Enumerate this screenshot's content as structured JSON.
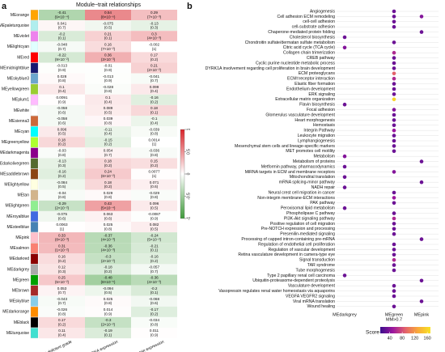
{
  "chart_data": [
    {
      "type": "heatmap",
      "panel": "a",
      "title": "Module−trait relationships",
      "rows": [
        "MEorange",
        "MEpaleturquoise",
        "MEviolet",
        "MElightcyan",
        "MEred",
        "MEmidnightblue",
        "MEskyblue3",
        "MEyellowgreen",
        "MEplum1",
        "MEwhite",
        "MEsienna3",
        "MEcyan",
        "MEgreenyellow",
        "MEdarkmagenta",
        "MEdarkolivegreen",
        "MEsaddlebrown",
        "MElightyellow",
        "MEtan",
        "MElightgreen",
        "MEroyalblue",
        "MEsteelblue",
        "MEpink",
        "MEsalmon",
        "MEdarkred",
        "MEdarkgrey",
        "MEgreen",
        "MEbrown",
        "MEskyblue",
        "MEdarkorange",
        "MEblack",
        "MEturquoise"
      ],
      "row_colors": [
        "#ffa500",
        "#afeeee",
        "#ee82ee",
        "#e0ffff",
        "#ff0000",
        "#191970",
        "#6ca6cd",
        "#9acd32",
        "#ffbbff",
        "#ffffff",
        "#cd6839",
        "#00ffff",
        "#adff2f",
        "#8b008b",
        "#556b2f",
        "#8b4513",
        "#ffffe0",
        "#d2b48c",
        "#90ee90",
        "#4169e1",
        "#4682b4",
        "#ffc0cb",
        "#fa8072",
        "#8b0000",
        "#a9a9a9",
        "#00a000",
        "#a52a2a",
        "#87ceeb",
        "#ff8c00",
        "#000000",
        "#40e0d0"
      ],
      "columns": [
        "FH-deficient grade",
        "FH mRNA expression",
        "FH protein expression"
      ],
      "values": [
        [
          -0.41,
          0.54,
          0.29
        ],
        [
          0.041,
          -0.075,
          -0.13
        ],
        [
          -0.2,
          0.21,
          0.3
        ],
        [
          -0.048,
          0.16,
          -0.002
        ],
        [
          -0.22,
          0.36,
          0.17
        ],
        [
          -0.013,
          -0.01,
          0.21
        ],
        [
          0.028,
          -0.013,
          -0.041
        ],
        [
          0.1,
          -0.028,
          0.099
        ],
        [
          0.0091,
          0.1,
          -0.16
        ],
        [
          -0.058,
          0.089,
          0.18
        ],
        [
          -0.058,
          0.039,
          -0.1
        ],
        [
          0.096,
          -0.11,
          -0.039
        ],
        [
          0.18,
          -0.15,
          0.0014
        ],
        [
          -0.03,
          0.054,
          -0.036
        ],
        [
          -0.13,
          0.18,
          0.15
        ],
        [
          -0.16,
          0.24,
          0.0077
        ],
        [
          -0.084,
          0.18,
          0.071
        ],
        [
          -0.04,
          0.029,
          -0.029
        ],
        [
          -0.29,
          0.43,
          0.096
        ],
        [
          -0.075,
          0.063,
          -0.0087
        ],
        [
          0.0063,
          0.025,
          0.082
        ],
        [
          0.33,
          -0.37,
          -0.24
        ],
        [
          0.31,
          -0.36,
          -0.21
        ],
        [
          0.16,
          -0.3,
          -0.16
        ],
        [
          0.12,
          -0.18,
          -0.057
        ],
        [
          0.25,
          -0.48,
          -0.36
        ],
        [
          0.053,
          -0.094,
          -0.2
        ],
        [
          -0.043,
          0.025,
          -0.068
        ],
        [
          -0.026,
          0.014,
          -0.17
        ],
        [
          0.17,
          -0.3,
          -0.034
        ],
        [
          0.11,
          -0.19,
          0.011
        ]
      ],
      "p_labels": [
        [
          "(9×10⁻⁴)",
          "(8×10⁻⁶)",
          "(7×10⁻³)"
        ],
        [
          "(0.7)",
          "(0.5)",
          "(0.3)"
        ],
        [
          "(0.1)",
          "(0.1)",
          "(4×10⁻³)"
        ],
        [
          "(0.7)",
          "(7×10⁻²)",
          "(1)"
        ],
        [
          "(9×10⁻²)",
          "(3×10⁻³)",
          "(0.2)"
        ],
        [
          "(0.9)",
          "(0.9)",
          "(2×10⁻²)"
        ],
        [
          "(0.8)",
          "(0.9)",
          "(0.7)"
        ],
        [
          "(0.4)",
          "(0.8)",
          "(0.4)"
        ],
        [
          "(0.9)",
          "(0.4)",
          "(0.2)"
        ],
        [
          "(0.6)",
          "(0.5)",
          "(0.1)"
        ],
        [
          "(0.6)",
          "(0.8)",
          "(0.4)"
        ],
        [
          "(0.5)",
          "(0.4)",
          "(0.8)"
        ],
        [
          "(0.2)",
          "(0.2)",
          "(1)"
        ],
        [
          "(0.8)",
          "(0.7)",
          "(0.8)"
        ],
        [
          "(0.3)",
          "(0.2)",
          "(0.2)"
        ],
        [
          "(0.2)",
          "(6×10⁻²)",
          "(1)"
        ],
        [
          "(0.5)",
          "(0.2)",
          "(0.6)"
        ],
        [
          "(0.8)",
          "(0.8)",
          "(0.8)"
        ],
        [
          "(2×10⁻²)",
          "(5×10⁻⁴)",
          "(0.5)"
        ],
        [
          "(0.6)",
          "(0.6)",
          "(0.9)"
        ],
        [
          "(1)",
          "(0.8)",
          "(0.5)"
        ],
        [
          "(8×10⁻³)",
          "(4×10⁻³)",
          "(5×10⁻²)"
        ],
        [
          "(1×10⁻²)",
          "(4×10⁻³)",
          "(0.1)"
        ],
        [
          "(0.2)",
          "(2×10⁻²)",
          "(0.2)"
        ],
        [
          "(0.3)",
          "(0.2)",
          "(0.7)"
        ],
        [
          "(5×10⁻²)",
          "(8×10⁻⁵)",
          "(4×10⁻³)"
        ],
        [
          "(0.7)",
          "(0.5)",
          "(0.1)"
        ],
        [
          "(0.7)",
          "(0.8)",
          "(0.6)"
        ],
        [
          "(0.8)",
          "(0.9)",
          "(0.2)"
        ],
        [
          "(0.2)",
          "(2×10⁻²)",
          "(0.8)"
        ],
        [
          "(0.4)",
          "(0.1)",
          "(0.9)"
        ]
      ],
      "zlim": [
        -1,
        1
      ],
      "colors": [
        "#3f9a3a",
        "#ffffff",
        "#d9242a"
      ],
      "colorbar_ticks": [
        -1,
        -0.5,
        0,
        0.5,
        1
      ]
    },
    {
      "type": "dot",
      "panel": "b",
      "y_categories": [
        "Angiogenesis",
        "Cell adhesion ECM remodeling",
        "cell-cell adhesion",
        "cell-substrate adhesion",
        "Chaperone-mediated protein folding",
        "Cholesterol biosynthesis",
        "Chondroitin sulfate/dermatan sulfate metabolism",
        "Citric acid cycle (TCA cycle)",
        "Collagen chain trimerization",
        "CREB pathway",
        "Cyclic purine nucleotide metabolic process",
        "DYRK1A involvement regarding cell proliferation in brain development",
        "ECM proteoglycans",
        "ECM=receptor interaction",
        "Elastic fiber formation",
        "Endothelium development",
        "ERK signaling",
        "Extracellular matrix organization",
        "Flavin biosynthesis",
        "Focal adhesion",
        "Glomerulus vasculature development",
        "Heart morphogenesis",
        "Hemostasis",
        "Integrin Pathway",
        "Leukocyte migration",
        "Lymphangiogenesis",
        "Mesenchymal stem cells and lineage-specific markers",
        "MET promotes cell motility",
        "Metabolism",
        "Metabolism of proteins",
        "Metformin pathway, pharmacodynamics",
        "MiRNA targets in ECM and membrane receptors",
        "Mitochondrial translation",
        "mRNA splicing-minor pathway",
        "NADH repair",
        "Neural crest cell migration in cancer",
        "Non-integrin membrane-ECM interactions",
        "PAK pathway",
        "Peroxisomal lipid metabolism",
        "Phospholipase C pathway",
        "PI3K-Akt signaling pathway",
        "Positive regulation of cell migration",
        "Pre-NOTCH expression and processing",
        "Presenilin-mediated signaling",
        "Processing of capped intron-containing pre-mRNA",
        "Regulation of endothelial cell proliferation",
        "Regulation of vascular development",
        "Retina vasculature development in camera-type eye",
        "Signal transduction",
        "TAR syndrome",
        "Tube morphogenesis",
        "Type 2 papillary renal cell carcinoma",
        "Ubiquitin-proteasome-dependent proteolysis",
        "Vasculature development",
        "Vasopressin regulates renal water homeostasis via aquaporins",
        "VEGFA VEGFR2 signaling",
        "Viral mRNA translation",
        "Wound healing"
      ],
      "series": [
        {
          "name": [
            "MEdarkgrey"
          ],
          "values": [
            null,
            null,
            null,
            null,
            null,
            30,
            null,
            40,
            null,
            null,
            null,
            null,
            null,
            null,
            null,
            null,
            null,
            null,
            30,
            null,
            null,
            null,
            null,
            null,
            null,
            null,
            null,
            null,
            40,
            null,
            30,
            null,
            30,
            null,
            30,
            null,
            null,
            null,
            30,
            null,
            null,
            null,
            null,
            null,
            null,
            null,
            null,
            null,
            null,
            null,
            null,
            30,
            null,
            null,
            null,
            null,
            null,
            null
          ]
        },
        {
          "name": [
            "MEgreen",
            "MM>0.7"
          ],
          "values": [
            30,
            30,
            30,
            30,
            null,
            null,
            30,
            null,
            60,
            30,
            30,
            30,
            90,
            60,
            30,
            30,
            30,
            160,
            null,
            40,
            30,
            30,
            30,
            50,
            30,
            30,
            30,
            30,
            null,
            null,
            null,
            40,
            null,
            null,
            null,
            30,
            50,
            30,
            null,
            30,
            60,
            30,
            30,
            30,
            null,
            30,
            30,
            30,
            60,
            30,
            30,
            null,
            null,
            30,
            30,
            30,
            null,
            30
          ]
        },
        {
          "name": [
            "MEpink"
          ],
          "values": [
            null,
            40,
            null,
            null,
            30,
            null,
            null,
            null,
            null,
            null,
            null,
            null,
            null,
            null,
            null,
            null,
            null,
            null,
            null,
            null,
            null,
            null,
            null,
            null,
            null,
            null,
            null,
            null,
            null,
            30,
            null,
            null,
            null,
            30,
            null,
            null,
            null,
            null,
            null,
            null,
            null,
            null,
            null,
            null,
            30,
            null,
            null,
            null,
            null,
            null,
            null,
            null,
            30,
            null,
            null,
            null,
            30,
            null
          ]
        }
      ],
      "color_title": "Score",
      "colorlim": [
        10,
        170
      ],
      "colors": [
        "#3b0f8c",
        "#9c179e",
        "#e3626b",
        "#f9a93a",
        "#f7e225"
      ],
      "color_ticks": [
        40,
        80,
        120,
        160
      ],
      "grid": true
    }
  ]
}
